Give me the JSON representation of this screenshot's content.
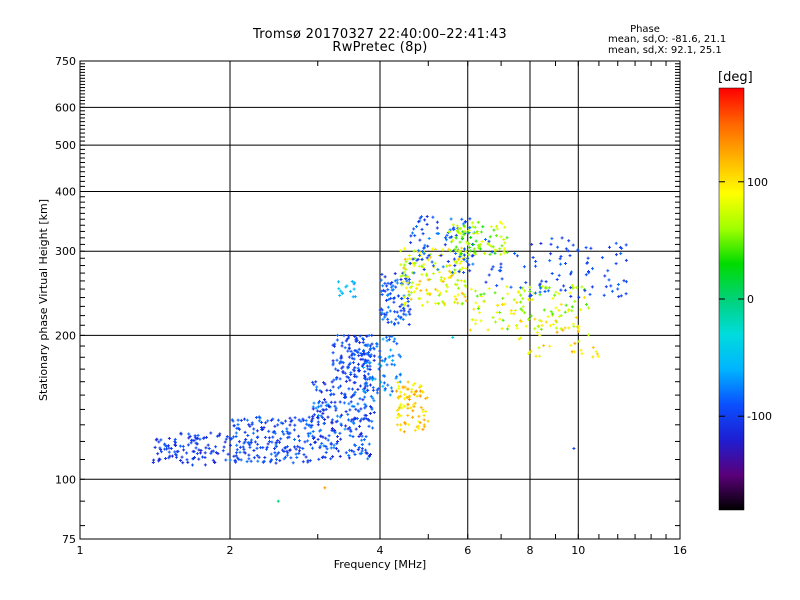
{
  "header": {
    "title_line1": "Tromsø 20170327 22:40:00–22:41:43",
    "title_line2": "RwPretec (8p)",
    "phase_stats_title": "Phase",
    "phase_stats_o": "mean, sd,O: -81.6, 21.1",
    "phase_stats_x": "mean, sd,X: 92.1, 25.1"
  },
  "colorbar": {
    "unit_label": "[deg]",
    "ticks": [
      {
        "value": 100,
        "label": "100"
      },
      {
        "value": 0,
        "label": "0"
      },
      {
        "value": -100,
        "label": "-100"
      }
    ],
    "range": [
      -180,
      180
    ],
    "colors": [
      "#000000",
      "#5a007a",
      "#1e1ed2",
      "#0a50ff",
      "#00b4ff",
      "#00dcdc",
      "#00d278",
      "#00dc00",
      "#a0ff00",
      "#ffff00",
      "#ffb400",
      "#ff6400",
      "#ff0000"
    ]
  },
  "chart_data": {
    "type": "scatter",
    "title": "Tromsø 20170327 22:40:00–22:41:43",
    "subtitle": "RwPretec (8p)",
    "xlabel": "Frequency [MHz]",
    "ylabel": "Stationary phase Virtual Height [km]",
    "x_scale": "log",
    "y_scale": "log",
    "xlim": [
      1,
      16
    ],
    "ylim": [
      75,
      750
    ],
    "grid": true,
    "x_ticks": [
      {
        "value": 1,
        "label": "1"
      },
      {
        "value": 2,
        "label": "2"
      },
      {
        "value": 4,
        "label": "4"
      },
      {
        "value": 6,
        "label": "6"
      },
      {
        "value": 8,
        "label": "8"
      },
      {
        "value": 10,
        "label": "10"
      },
      {
        "value": 16,
        "label": "16"
      }
    ],
    "y_ticks": [
      {
        "value": 75,
        "label": "75"
      },
      {
        "value": 100,
        "label": "100"
      },
      {
        "value": 200,
        "label": "200"
      },
      {
        "value": 300,
        "label": "300"
      },
      {
        "value": 400,
        "label": "400"
      },
      {
        "value": 500,
        "label": "500"
      },
      {
        "value": 600,
        "label": "600"
      },
      {
        "value": 750,
        "label": "750"
      }
    ],
    "point_clusters": [
      {
        "f_range": [
          1.4,
          2.0
        ],
        "h_range": [
          107,
          125
        ],
        "phase": [
          -120,
          -85
        ],
        "count": 110
      },
      {
        "f_range": [
          2.0,
          2.9
        ],
        "h_range": [
          108,
          135
        ],
        "phase": [
          -115,
          -75
        ],
        "count": 190
      },
      {
        "f_range": [
          2.9,
          3.9
        ],
        "h_range": [
          110,
          160
        ],
        "phase": [
          -120,
          -70
        ],
        "count": 240
      },
      {
        "f_range": [
          3.2,
          3.9
        ],
        "h_range": [
          160,
          200
        ],
        "phase": [
          -120,
          -80
        ],
        "count": 130
      },
      {
        "f_range": [
          3.7,
          4.4
        ],
        "h_range": [
          150,
          200
        ],
        "phase": [
          -100,
          -55
        ],
        "count": 80
      },
      {
        "f_range": [
          4.3,
          5.0
        ],
        "h_range": [
          125,
          160
        ],
        "phase": [
          80,
          135
        ],
        "count": 90
      },
      {
        "f_range": [
          4.0,
          4.6
        ],
        "h_range": [
          210,
          270
        ],
        "phase": [
          -115,
          -70
        ],
        "count": 90
      },
      {
        "f_range": [
          4.4,
          6.0
        ],
        "h_range": [
          230,
          305
        ],
        "phase": [
          50,
          120
        ],
        "count": 150
      },
      {
        "f_range": [
          4.6,
          6.2
        ],
        "h_range": [
          270,
          355
        ],
        "phase": [
          -110,
          -70
        ],
        "count": 90
      },
      {
        "f_range": [
          5.5,
          7.2
        ],
        "h_range": [
          295,
          345
        ],
        "phase": [
          30,
          90
        ],
        "count": 90
      },
      {
        "f_range": [
          6.0,
          10.5
        ],
        "h_range": [
          205,
          255
        ],
        "phase": [
          40,
          110
        ],
        "count": 120
      },
      {
        "f_range": [
          6.5,
          12.5
        ],
        "h_range": [
          240,
          320
        ],
        "phase": [
          -110,
          -80
        ],
        "count": 100
      },
      {
        "f_range": [
          7.5,
          11.0
        ],
        "h_range": [
          180,
          215
        ],
        "phase": [
          70,
          130
        ],
        "count": 40
      },
      {
        "f_range": [
          3.3,
          3.6
        ],
        "h_range": [
          240,
          260
        ],
        "phase": [
          -70,
          -40
        ],
        "count": 15
      }
    ],
    "outliers": [
      {
        "f": 2.5,
        "h": 90,
        "phase": 0
      },
      {
        "f": 3.1,
        "h": 96,
        "phase": 130
      },
      {
        "f": 9.8,
        "h": 116,
        "phase": -100
      },
      {
        "f": 5.6,
        "h": 198,
        "phase": -40
      }
    ]
  }
}
